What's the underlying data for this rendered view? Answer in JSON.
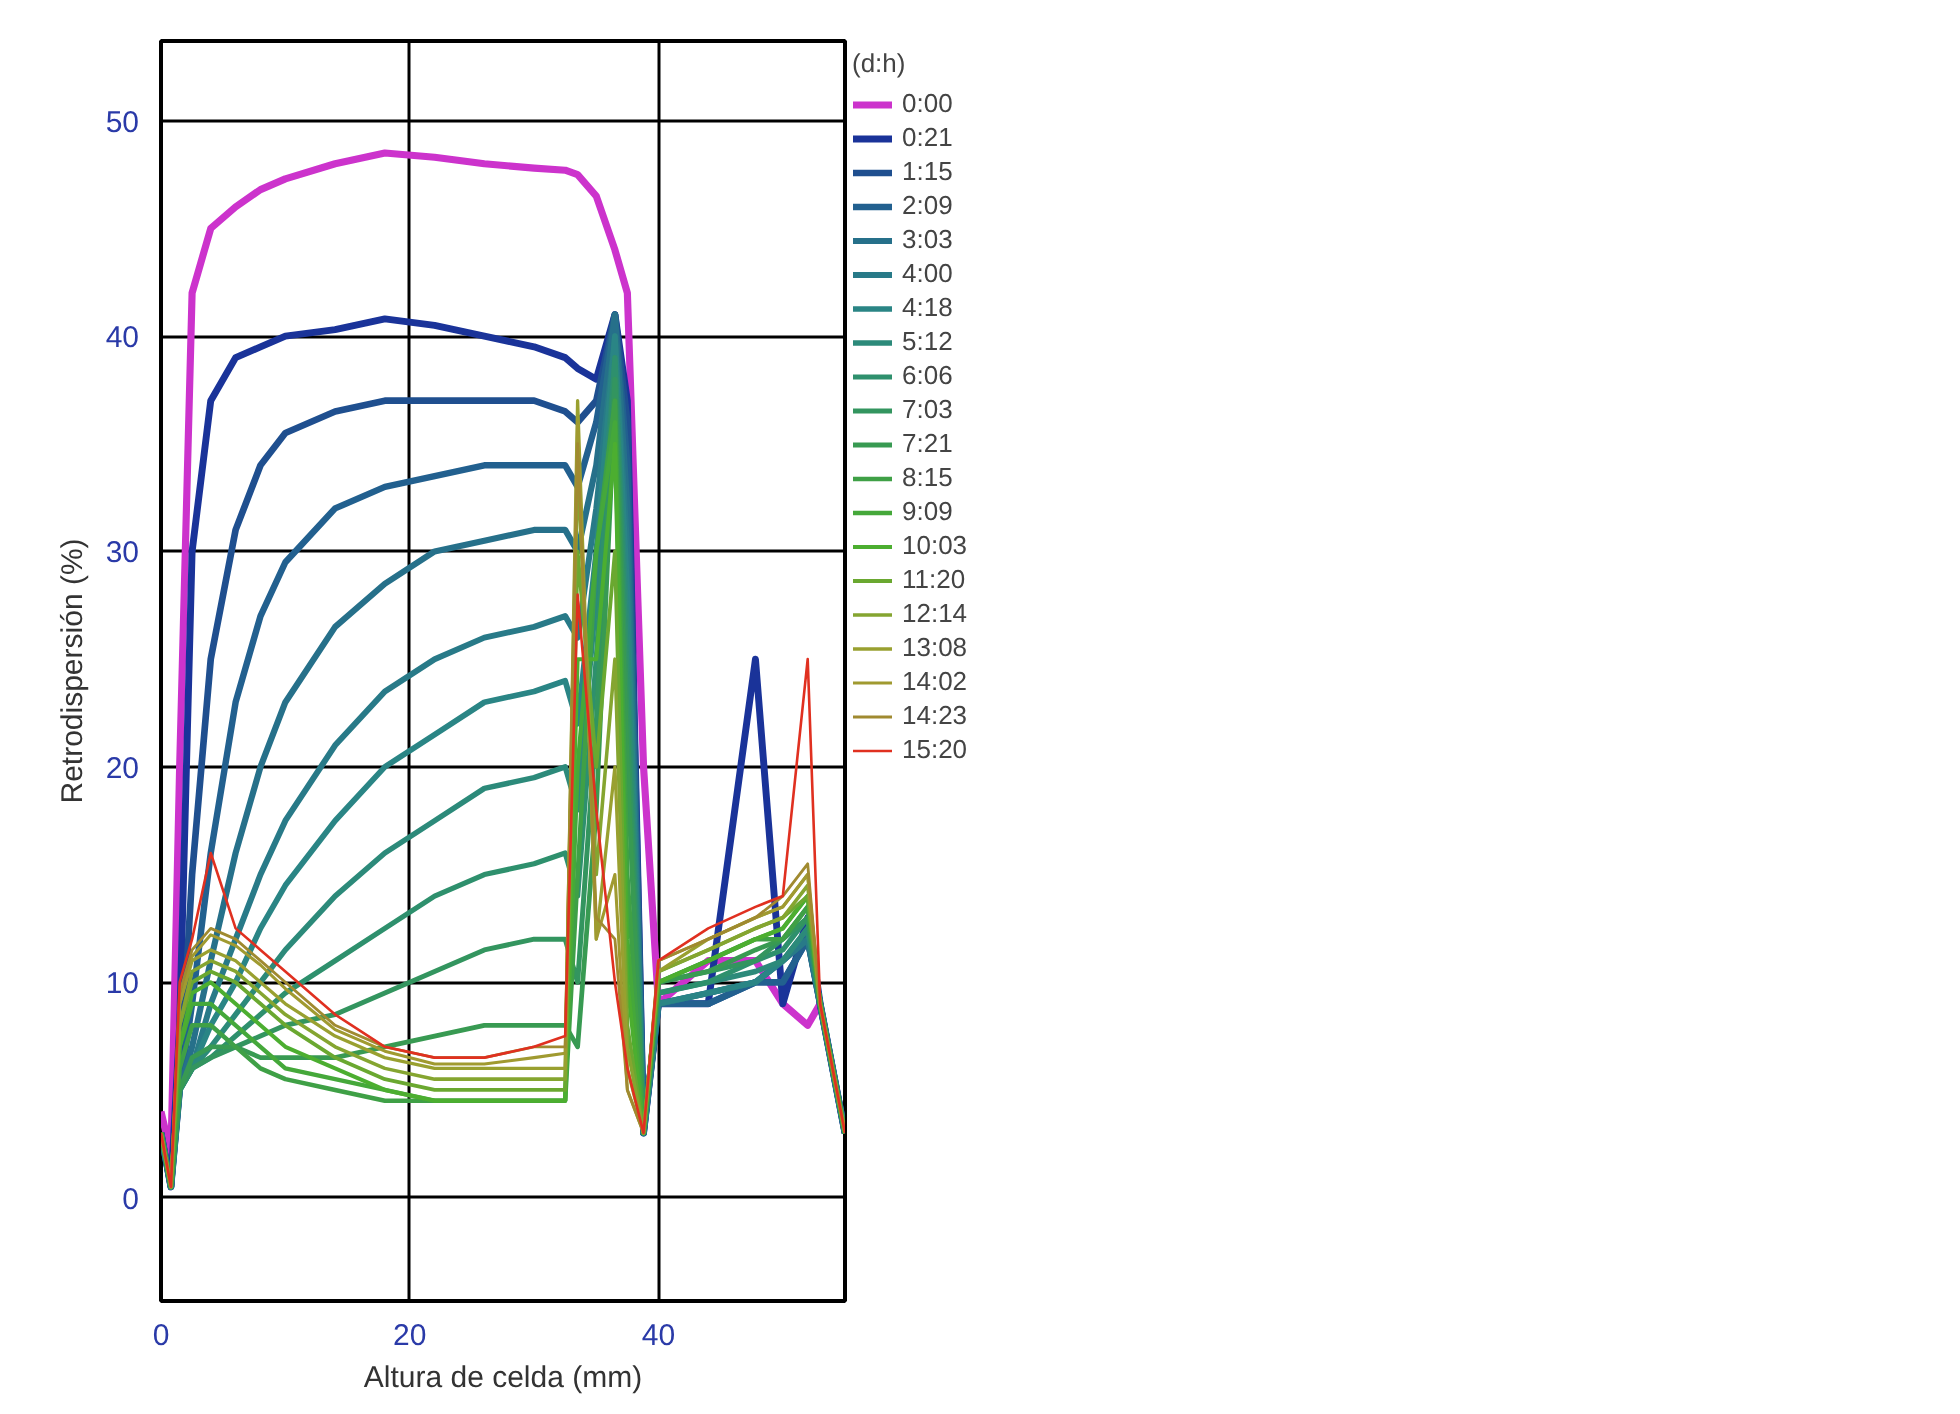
{
  "chart_data": {
    "type": "line",
    "xlabel": "Altura de celda (mm)",
    "ylabel": "Retrodispersión (%)",
    "legend_title": "(d:h)",
    "legend": "right",
    "grid": true,
    "marker": "none",
    "line_style": "solid",
    "xlim": [
      0,
      55
    ],
    "ylim": [
      -4.8,
      53.7
    ],
    "xticks": [
      0,
      20,
      40
    ],
    "yticks": [
      0,
      10,
      20,
      30,
      40,
      50
    ],
    "x": [
      0,
      0.8,
      1.5,
      2.5,
      4,
      6,
      8,
      10,
      14,
      18,
      22,
      26,
      30,
      32.5,
      33.5,
      35,
      36.5,
      37.5,
      38.8,
      40,
      44,
      47.8,
      50,
      52,
      53,
      55
    ],
    "series": [
      {
        "name": "0:00",
        "color": "#cc33cc",
        "values": [
          4,
          2,
          20,
          42,
          45,
          46,
          46.8,
          47.3,
          48,
          48.5,
          48.3,
          48,
          47.8,
          47.7,
          47.5,
          46.5,
          44,
          42,
          20,
          9,
          11,
          11,
          9,
          8,
          9,
          null
        ]
      },
      {
        "name": "0:21",
        "color": "#1a3399",
        "values": [
          3,
          0.5,
          8,
          30,
          37,
          39,
          39.5,
          40,
          40.3,
          40.8,
          40.5,
          40,
          39.5,
          39,
          38.5,
          38,
          41,
          37,
          3,
          9,
          9,
          25,
          9,
          13,
          9,
          3
        ]
      },
      {
        "name": "1:15",
        "color": "#1f4f8f",
        "values": [
          3,
          0.5,
          5,
          15,
          25,
          31,
          34,
          35.5,
          36.5,
          37,
          37,
          37,
          37,
          36.5,
          36,
          37,
          41,
          36,
          3,
          9,
          9,
          10,
          10,
          12,
          9,
          3
        ]
      },
      {
        "name": "2:09",
        "color": "#22608f",
        "values": [
          3,
          0.5,
          5,
          9,
          16,
          23,
          27,
          29.5,
          32,
          33,
          33.5,
          34,
          34,
          34,
          33,
          36,
          41,
          34,
          3,
          9,
          9,
          10,
          10,
          12,
          9,
          3
        ]
      },
      {
        "name": "3:03",
        "color": "#26708a",
        "values": [
          3,
          0.5,
          5,
          7,
          11,
          16,
          20,
          23,
          26.5,
          28.5,
          30,
          30.5,
          31,
          31,
          30,
          34,
          41,
          32,
          3,
          9,
          9.5,
          10,
          11,
          12,
          9,
          3
        ]
      },
      {
        "name": "4:00",
        "color": "#287a88",
        "values": [
          3,
          0.5,
          5,
          6,
          9,
          12,
          15,
          17.5,
          21,
          23.5,
          25,
          26,
          26.5,
          27,
          26,
          32,
          40,
          30,
          3,
          9,
          9.5,
          10,
          11,
          12,
          9,
          3
        ]
      },
      {
        "name": "4:18",
        "color": "#2a8585",
        "values": [
          3,
          0.5,
          5,
          6,
          8,
          10,
          12.5,
          14.5,
          17.5,
          20,
          21.5,
          23,
          23.5,
          24,
          22,
          30,
          40,
          28,
          3,
          9,
          9.5,
          10,
          11,
          12.5,
          9,
          3
        ]
      },
      {
        "name": "5:12",
        "color": "#2c8a7a",
        "values": [
          3,
          0.5,
          5,
          6,
          7,
          8.5,
          10,
          11.5,
          14,
          16,
          17.5,
          19,
          19.5,
          20,
          18,
          28,
          39,
          26,
          3,
          9.5,
          10,
          10.5,
          11,
          12.5,
          9,
          3
        ]
      },
      {
        "name": "6:06",
        "color": "#2e906d",
        "values": [
          3,
          0.5,
          5,
          6,
          6.5,
          7.5,
          8.5,
          9.5,
          11,
          12.5,
          14,
          15,
          15.5,
          16,
          14,
          25,
          39,
          24,
          3,
          9.5,
          10,
          11,
          11.5,
          13,
          9,
          3
        ]
      },
      {
        "name": "7:03",
        "color": "#33955f",
        "values": [
          3,
          0.5,
          5,
          6,
          6.5,
          7,
          7.5,
          8,
          8.5,
          9.5,
          10.5,
          11.5,
          12,
          12,
          10,
          22,
          38,
          22,
          3,
          10,
          10.5,
          11,
          12,
          13,
          9,
          3
        ]
      },
      {
        "name": "7:21",
        "color": "#389a52",
        "values": [
          3,
          0.5,
          5,
          6.5,
          7,
          7,
          6.5,
          6.5,
          6.5,
          7,
          7.5,
          8,
          8,
          8,
          7,
          18,
          37,
          20,
          3,
          10,
          10.5,
          11.5,
          12,
          13.5,
          9,
          3
        ]
      },
      {
        "name": "8:15",
        "color": "#3fa046",
        "values": [
          3,
          0.5,
          6,
          8,
          8,
          7,
          6,
          5.5,
          5,
          4.5,
          4.5,
          4.5,
          4.5,
          4.5,
          15,
          30,
          37,
          15,
          3,
          10,
          11,
          12,
          12,
          13.5,
          9,
          3
        ]
      },
      {
        "name": "9:09",
        "color": "#45a83a",
        "values": [
          3,
          0.5,
          7,
          9,
          9,
          8,
          7,
          6,
          5.5,
          5,
          4.5,
          4.5,
          4.5,
          4.5,
          20,
          30,
          36,
          12,
          3,
          10,
          11,
          12,
          12.5,
          14,
          9,
          3
        ]
      },
      {
        "name": "10:03",
        "color": "#4cae30",
        "values": [
          3,
          0.5,
          7,
          9.5,
          10,
          9,
          8,
          7,
          6,
          5,
          4.5,
          4.5,
          4.5,
          4.5,
          25,
          25,
          35,
          10,
          3,
          10,
          11,
          12,
          12.5,
          14,
          9,
          3
        ]
      },
      {
        "name": "11:20",
        "color": "#6aa830",
        "values": [
          3,
          0.5,
          8,
          10,
          10.5,
          10,
          9,
          8,
          6.5,
          5.5,
          5,
          5,
          5,
          5,
          30,
          20,
          30,
          8,
          3,
          10.5,
          11.5,
          12.5,
          13,
          14,
          9,
          3
        ]
      },
      {
        "name": "12:14",
        "color": "#85a530",
        "values": [
          3,
          0.5,
          8,
          10.5,
          11,
          10.5,
          9.5,
          8.5,
          7,
          6,
          5.5,
          5.5,
          5.5,
          5.5,
          34,
          15,
          25,
          7,
          3,
          10.5,
          11.5,
          12.5,
          13,
          14.5,
          9,
          3
        ]
      },
      {
        "name": "13:08",
        "color": "#99a030",
        "values": [
          3,
          0.5,
          9,
          11,
          11.5,
          11,
          10,
          9,
          7.5,
          6.5,
          6,
          6,
          6,
          6,
          37,
          12,
          20,
          6,
          3,
          10.5,
          12,
          13,
          13.5,
          15,
          9,
          3
        ]
      },
      {
        "name": "14:02",
        "color": "#a09a30",
        "values": [
          3,
          0.5,
          9,
          11.2,
          12.2,
          11.7,
          10.8,
          9.7,
          7.8,
          6.8,
          6.2,
          6.2,
          6.5,
          6.7,
          36,
          12,
          15,
          5,
          3,
          11,
          12,
          13,
          13.5,
          15,
          9,
          3
        ]
      },
      {
        "name": "14:23",
        "color": "#a08a30",
        "values": [
          3,
          0.5,
          9.5,
          11.5,
          12.5,
          12,
          11,
          10,
          8,
          7,
          6.5,
          6.5,
          7,
          7,
          35,
          13,
          12,
          5,
          3,
          11,
          12,
          13,
          14,
          15.5,
          9,
          3
        ]
      },
      {
        "name": "15:20",
        "color": "#e03020",
        "values": [
          3,
          0.5,
          10,
          12,
          16,
          12.5,
          11.5,
          10.5,
          8.5,
          7,
          6.5,
          6.5,
          7,
          7.5,
          28,
          18,
          10,
          6,
          3,
          11,
          12.5,
          13.5,
          14,
          25,
          9,
          3
        ]
      }
    ]
  }
}
